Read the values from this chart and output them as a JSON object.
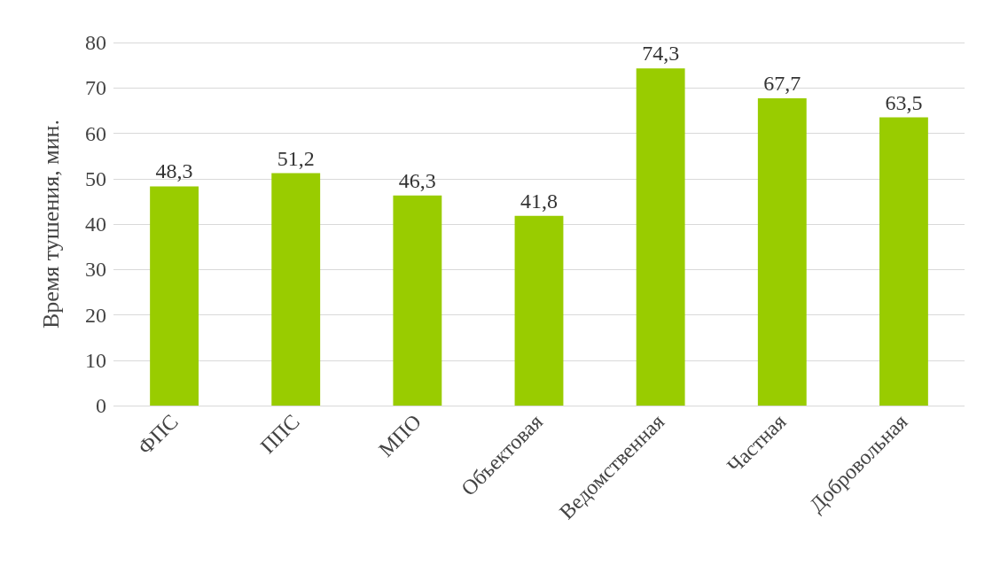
{
  "chart_data": {
    "type": "bar",
    "ylabel": "Время тушения, мин.",
    "categories": [
      "ФПС",
      "ППС",
      "МПО",
      "Объектовая",
      "Ведомственная",
      "Частная",
      "Добровольная"
    ],
    "values": [
      48.3,
      51.2,
      46.3,
      41.8,
      74.3,
      67.7,
      63.5
    ],
    "value_labels": [
      "48,3",
      "51,2",
      "46,3",
      "41,8",
      "74,3",
      "67,7",
      "63,5"
    ],
    "color": "#99cc00",
    "ylim": [
      0,
      80
    ],
    "yticks": [
      0,
      10,
      20,
      30,
      40,
      50,
      60,
      70,
      80
    ],
    "grid": "y"
  }
}
